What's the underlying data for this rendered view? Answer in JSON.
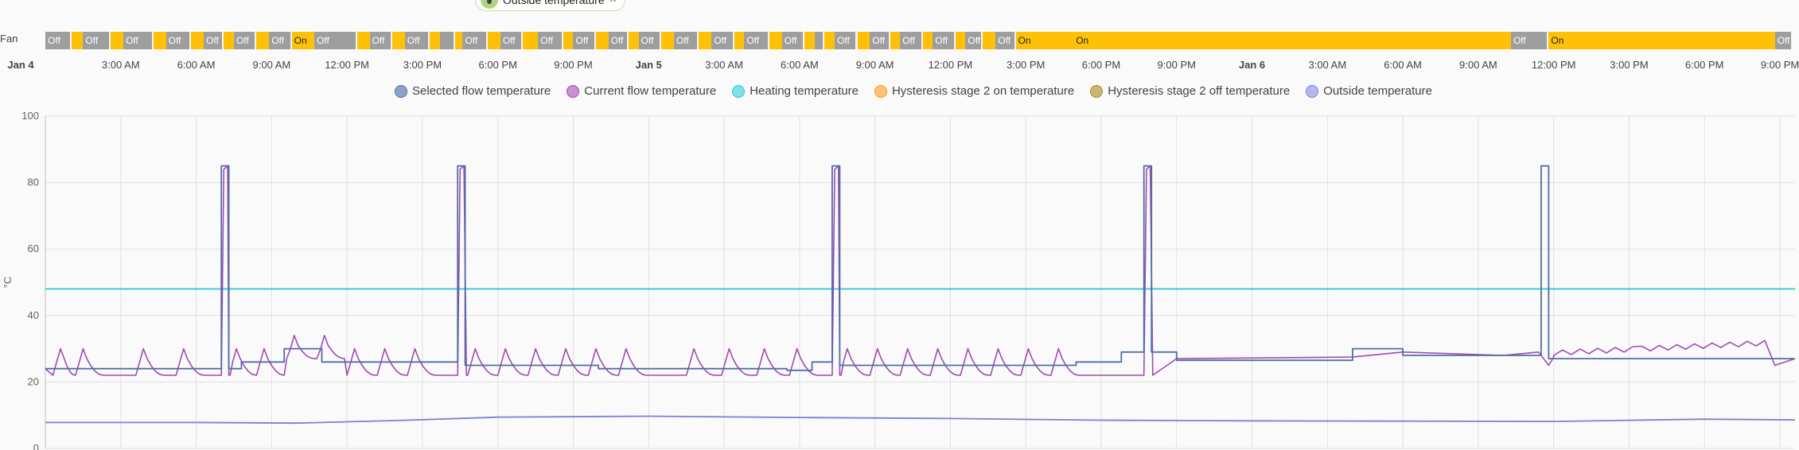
{
  "chip": {
    "label": "Outside temperature",
    "close": "×"
  },
  "fan_timeline": {
    "label": "Fan",
    "segments": [
      {
        "state": "Off",
        "start": 0.0,
        "end": 1.05
      },
      {
        "state": "On",
        "start": 1.05,
        "end": 1.5
      },
      {
        "state": "Off",
        "start": 1.5,
        "end": 2.6
      },
      {
        "state": "On",
        "start": 2.6,
        "end": 3.1
      },
      {
        "state": "Off",
        "start": 3.1,
        "end": 4.3
      },
      {
        "state": "On",
        "start": 4.3,
        "end": 4.8
      },
      {
        "state": "Off",
        "start": 4.8,
        "end": 5.8
      },
      {
        "state": "On",
        "start": 5.8,
        "end": 6.3
      },
      {
        "state": "Off",
        "start": 6.3,
        "end": 7.1
      },
      {
        "state": "On",
        "start": 7.1,
        "end": 7.5
      },
      {
        "state": "Off",
        "start": 7.5,
        "end": 8.4
      },
      {
        "state": "On",
        "start": 8.4,
        "end": 8.9
      },
      {
        "state": "Off",
        "start": 8.9,
        "end": 9.8
      },
      {
        "state": "On",
        "start": 9.8,
        "end": 10.7
      },
      {
        "state": "Off",
        "start": 10.7,
        "end": 12.4
      },
      {
        "state": "On",
        "start": 12.4,
        "end": 12.9
      },
      {
        "state": "Off",
        "start": 12.9,
        "end": 13.8
      },
      {
        "state": "On",
        "start": 13.8,
        "end": 14.3
      },
      {
        "state": "Off",
        "start": 14.3,
        "end": 15.3
      },
      {
        "state": "On",
        "start": 15.3,
        "end": 15.7
      },
      {
        "state": "Off",
        "start": 15.7,
        "end": 16.3
      },
      {
        "state": "On",
        "start": 16.3,
        "end": 16.6
      },
      {
        "state": "Off",
        "start": 16.6,
        "end": 17.6
      },
      {
        "state": "On",
        "start": 17.6,
        "end": 18.1
      },
      {
        "state": "Off",
        "start": 18.1,
        "end": 19.0
      },
      {
        "state": "On",
        "start": 19.0,
        "end": 19.6
      },
      {
        "state": "Off",
        "start": 19.6,
        "end": 20.6
      },
      {
        "state": "On",
        "start": 20.6,
        "end": 21.0
      },
      {
        "state": "Off",
        "start": 21.0,
        "end": 21.9
      },
      {
        "state": "On",
        "start": 21.9,
        "end": 22.4
      },
      {
        "state": "Off",
        "start": 22.4,
        "end": 23.2
      },
      {
        "state": "On",
        "start": 23.2,
        "end": 23.6
      },
      {
        "state": "Off",
        "start": 23.6,
        "end": 24.5
      },
      {
        "state": "On",
        "start": 24.5,
        "end": 25.0
      },
      {
        "state": "Off",
        "start": 25.0,
        "end": 26.0
      },
      {
        "state": "On",
        "start": 26.0,
        "end": 26.5
      },
      {
        "state": "Off",
        "start": 26.5,
        "end": 27.4
      },
      {
        "state": "On",
        "start": 27.4,
        "end": 27.8
      },
      {
        "state": "Off",
        "start": 27.8,
        "end": 28.8
      },
      {
        "state": "On",
        "start": 28.8,
        "end": 29.3
      },
      {
        "state": "Off",
        "start": 29.3,
        "end": 30.2
      },
      {
        "state": "On",
        "start": 30.2,
        "end": 30.6
      },
      {
        "state": "Off",
        "start": 30.6,
        "end": 31.0
      },
      {
        "state": "On",
        "start": 31.0,
        "end": 31.4
      },
      {
        "state": "Off",
        "start": 31.4,
        "end": 32.3
      },
      {
        "state": "On",
        "start": 32.3,
        "end": 32.8
      },
      {
        "state": "Off",
        "start": 32.8,
        "end": 33.6
      },
      {
        "state": "On",
        "start": 33.6,
        "end": 34.0
      },
      {
        "state": "Off",
        "start": 34.0,
        "end": 34.9
      },
      {
        "state": "On",
        "start": 34.9,
        "end": 35.3
      },
      {
        "state": "Off",
        "start": 35.3,
        "end": 36.2
      },
      {
        "state": "On",
        "start": 36.2,
        "end": 36.6
      },
      {
        "state": "Off",
        "start": 36.6,
        "end": 37.3
      },
      {
        "state": "On",
        "start": 37.3,
        "end": 37.8
      },
      {
        "state": "Off",
        "start": 37.8,
        "end": 38.6
      },
      {
        "state": "On",
        "start": 38.6,
        "end": 40.9
      },
      {
        "state": "On",
        "start": 40.9,
        "end": 58.3
      },
      {
        "state": "Off",
        "start": 58.3,
        "end": 59.8
      },
      {
        "state": "On",
        "start": 59.8,
        "end": 68.8
      },
      {
        "state": "Off",
        "start": 68.8,
        "end": 69.5
      }
    ]
  },
  "time_axis": [
    {
      "label": "Jan 4",
      "t": 0,
      "bold": true
    },
    {
      "label": "3:00 AM",
      "t": 3
    },
    {
      "label": "6:00 AM",
      "t": 6
    },
    {
      "label": "9:00 AM",
      "t": 9
    },
    {
      "label": "12:00 PM",
      "t": 12
    },
    {
      "label": "3:00 PM",
      "t": 15
    },
    {
      "label": "6:00 PM",
      "t": 18
    },
    {
      "label": "9:00 PM",
      "t": 21
    },
    {
      "label": "Jan 5",
      "t": 24,
      "bold": true
    },
    {
      "label": "3:00 AM",
      "t": 27
    },
    {
      "label": "6:00 AM",
      "t": 30
    },
    {
      "label": "9:00 AM",
      "t": 33
    },
    {
      "label": "12:00 PM",
      "t": 36
    },
    {
      "label": "3:00 PM",
      "t": 39
    },
    {
      "label": "6:00 PM",
      "t": 42
    },
    {
      "label": "9:00 PM",
      "t": 45
    },
    {
      "label": "Jan 6",
      "t": 48,
      "bold": true
    },
    {
      "label": "3:00 AM",
      "t": 51
    },
    {
      "label": "6:00 AM",
      "t": 54
    },
    {
      "label": "9:00 AM",
      "t": 57
    },
    {
      "label": "12:00 PM",
      "t": 60
    },
    {
      "label": "3:00 PM",
      "t": 63
    },
    {
      "label": "6:00 PM",
      "t": 66
    },
    {
      "label": "9:00 PM",
      "t": 69
    }
  ],
  "chart_data": {
    "type": "line",
    "ylabel": "°C",
    "ylim": [
      0,
      100
    ],
    "yticks": [
      0,
      20,
      40,
      60,
      80,
      100
    ],
    "grid": true,
    "legend_position": "top",
    "series": [
      {
        "name": "Selected flow temperature",
        "color": "#4e6fa6",
        "swatch_fill": "#8aa3c9"
      },
      {
        "name": "Current flow temperature",
        "color": "#a04ab0",
        "swatch_fill": "#c792cf"
      },
      {
        "name": "Heating temperature",
        "color": "#26c6da",
        "swatch_fill": "#7fe0ea",
        "values": [
          [
            0,
            48
          ],
          [
            69.6,
            48
          ]
        ]
      },
      {
        "name": "Hysteresis stage 2 on temperature",
        "color": "#ff9800",
        "swatch_fill": "#ffc27a"
      },
      {
        "name": "Hysteresis stage 2 off temperature",
        "color": "#a08c26",
        "swatch_fill": "#c9b86e"
      },
      {
        "name": "Outside temperature",
        "color": "#7b7fd6",
        "swatch_fill": "#b6b8ec",
        "values": [
          [
            0,
            7.8
          ],
          [
            6,
            7.8
          ],
          [
            10,
            7.6
          ],
          [
            14,
            8.4
          ],
          [
            18,
            9.4
          ],
          [
            24,
            9.7
          ],
          [
            30,
            9.3
          ],
          [
            36,
            9.0
          ],
          [
            42,
            8.5
          ],
          [
            48,
            8.3
          ],
          [
            54,
            8.2
          ],
          [
            60,
            8.1
          ],
          [
            66,
            8.8
          ],
          [
            69.6,
            8.6
          ]
        ]
      }
    ],
    "selected_flow_steps": [
      [
        0,
        24
      ],
      [
        7.0,
        24
      ],
      [
        7.0,
        85
      ],
      [
        7.3,
        85
      ],
      [
        7.3,
        24
      ],
      [
        7.8,
        24
      ],
      [
        7.8,
        26
      ],
      [
        9.5,
        26
      ],
      [
        9.5,
        30
      ],
      [
        11,
        30
      ],
      [
        11,
        26
      ],
      [
        16.4,
        26
      ],
      [
        16.4,
        85
      ],
      [
        16.7,
        85
      ],
      [
        16.7,
        25
      ],
      [
        22,
        25
      ],
      [
        22,
        24
      ],
      [
        29.5,
        24
      ],
      [
        29.5,
        23.5
      ],
      [
        30.5,
        23.5
      ],
      [
        30.5,
        26
      ],
      [
        31.3,
        26
      ],
      [
        31.3,
        85
      ],
      [
        31.6,
        85
      ],
      [
        31.6,
        25
      ],
      [
        41,
        25
      ],
      [
        41,
        26
      ],
      [
        42.8,
        26
      ],
      [
        42.8,
        29
      ],
      [
        43.7,
        29
      ],
      [
        43.7,
        85
      ],
      [
        44,
        85
      ],
      [
        44,
        29
      ],
      [
        45,
        29
      ],
      [
        45,
        26.5
      ],
      [
        52,
        26.5
      ],
      [
        52,
        30
      ],
      [
        54,
        30
      ],
      [
        54,
        28
      ],
      [
        58,
        28
      ],
      [
        58,
        28
      ],
      [
        59.5,
        28
      ],
      [
        59.5,
        85
      ],
      [
        59.8,
        85
      ],
      [
        59.8,
        27
      ],
      [
        69.6,
        27
      ]
    ],
    "current_flow_cycles_start": [
      0.3,
      1.2,
      3.6,
      5.2,
      7.3,
      8.4,
      9.6,
      10.8,
      12.0,
      13.2,
      14.4,
      16.8,
      18.0,
      19.2,
      20.4,
      21.6,
      22.8,
      25.5,
      26.9,
      28.3,
      29.6,
      31.6,
      32.8,
      34.0,
      35.2,
      36.4,
      37.6,
      38.8,
      40.0
    ]
  }
}
